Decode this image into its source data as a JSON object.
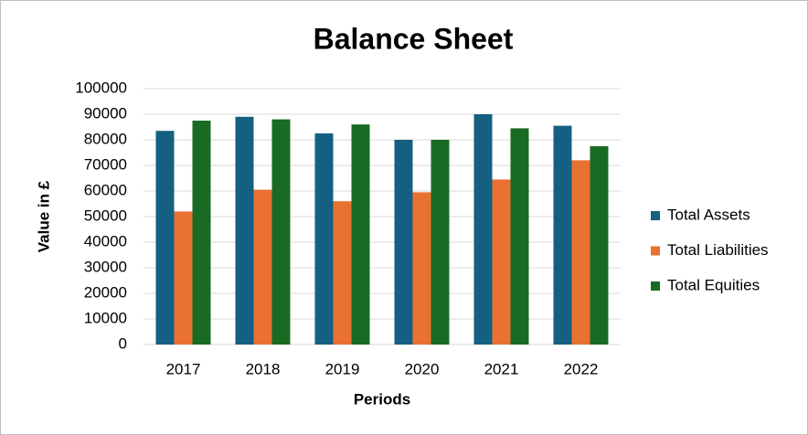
{
  "chart_data": {
    "type": "bar",
    "title": "Balance Sheet",
    "x_label": "Periods",
    "y_label": "Value in £",
    "categories": [
      "2017",
      "2018",
      "2019",
      "2020",
      "2021",
      "2022"
    ],
    "series": [
      {
        "name": "Total Assets",
        "color": "#156082",
        "values": [
          83500,
          89000,
          82500,
          80000,
          90000,
          85500
        ]
      },
      {
        "name": "Total Liabilities",
        "color": "#e97132",
        "values": [
          52000,
          60500,
          56000,
          59500,
          64500,
          72000
        ]
      },
      {
        "name": "Total Equities",
        "color": "#196b24",
        "values": [
          87500,
          88000,
          86000,
          80000,
          84500,
          77500
        ]
      }
    ],
    "ylim": [
      0,
      100000
    ],
    "yticks": [
      0,
      10000,
      20000,
      30000,
      40000,
      50000,
      60000,
      70000,
      80000,
      90000,
      100000
    ],
    "grid": true,
    "legend": "right"
  }
}
